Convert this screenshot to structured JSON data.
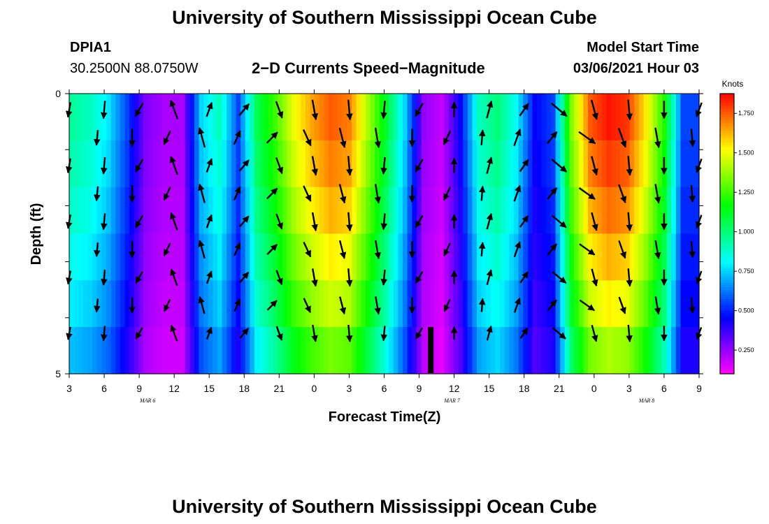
{
  "page": {
    "title": "University of Southern Mississippi Ocean Cube",
    "footer_title": "University of Southern Mississippi Ocean Cube",
    "station": "DPIA1",
    "coords": "30.2500N 88.0750W",
    "plot_title": "2−D Currents Speed−Magnitude",
    "model_label": "Model Start Time",
    "model_time": "03/06/2021 Hour 03"
  },
  "chart_data": {
    "type": "heatmap",
    "title": "2−D Currents Speed−Magnitude",
    "xlabel": "Forecast Time(Z)",
    "ylabel": "Depth (ft)",
    "x_start_hour": 3,
    "x_end_hour": 57,
    "ylim": [
      0,
      5
    ],
    "y_tick_labels": [
      "0",
      "",
      "",
      "",
      "",
      "5"
    ],
    "x_tick_labels": [
      "3",
      "6",
      "9",
      "12",
      "15",
      "18",
      "21",
      "0",
      "3",
      "6",
      "9",
      "12",
      "15",
      "18",
      "21",
      "0",
      "3",
      "6",
      "9"
    ],
    "date_labels": [
      {
        "label": "MAR 6",
        "hour": 12
      },
      {
        "label": "MAR 7",
        "hour": 36
      },
      {
        "label": "MAR 8",
        "hour": 60
      }
    ],
    "colorbar": {
      "unit": "Knots",
      "min": 0.1,
      "max": 1.875,
      "ticks": [
        "0.250",
        "0.500",
        "0.750",
        "1.000",
        "1.250",
        "1.500",
        "1.750"
      ],
      "tick_values": [
        0.25,
        0.5,
        0.75,
        1.0,
        1.25,
        1.5,
        1.75
      ]
    },
    "surface_speed_profile_knots": [
      0.95,
      0.9,
      0.78,
      0.55,
      0.28,
      0.22,
      0.22,
      0.75,
      0.9,
      0.55,
      1.05,
      1.25,
      1.5,
      1.65,
      1.75,
      1.7,
      1.4,
      1.1,
      0.75,
      0.25,
      0.18,
      0.45,
      0.9,
      1.0,
      0.82,
      0.45,
      0.55,
      1.35,
      1.75,
      1.85,
      1.8,
      1.55,
      1.2,
      0.55
    ],
    "depth_factor_per_layer": [
      1.0,
      0.97,
      0.93,
      0.88,
      0.83,
      0.76
    ],
    "vector_times_hours": [
      3,
      6,
      9,
      12,
      15,
      18,
      21,
      24,
      27,
      30,
      33,
      36,
      39,
      42,
      45,
      48,
      51,
      54,
      57
    ],
    "vector_direction_deg": [
      190,
      185,
      210,
      340,
      20,
      40,
      160,
      170,
      175,
      185,
      210,
      0,
      15,
      35,
      130,
      165,
      175,
      180,
      200
    ],
    "vector_length_factor": [
      0.6,
      0.7,
      0.6,
      0.8,
      0.6,
      0.6,
      0.7,
      0.8,
      0.8,
      0.7,
      0.6,
      0.6,
      0.7,
      0.6,
      0.8,
      0.8,
      0.8,
      0.7,
      0.6
    ]
  }
}
